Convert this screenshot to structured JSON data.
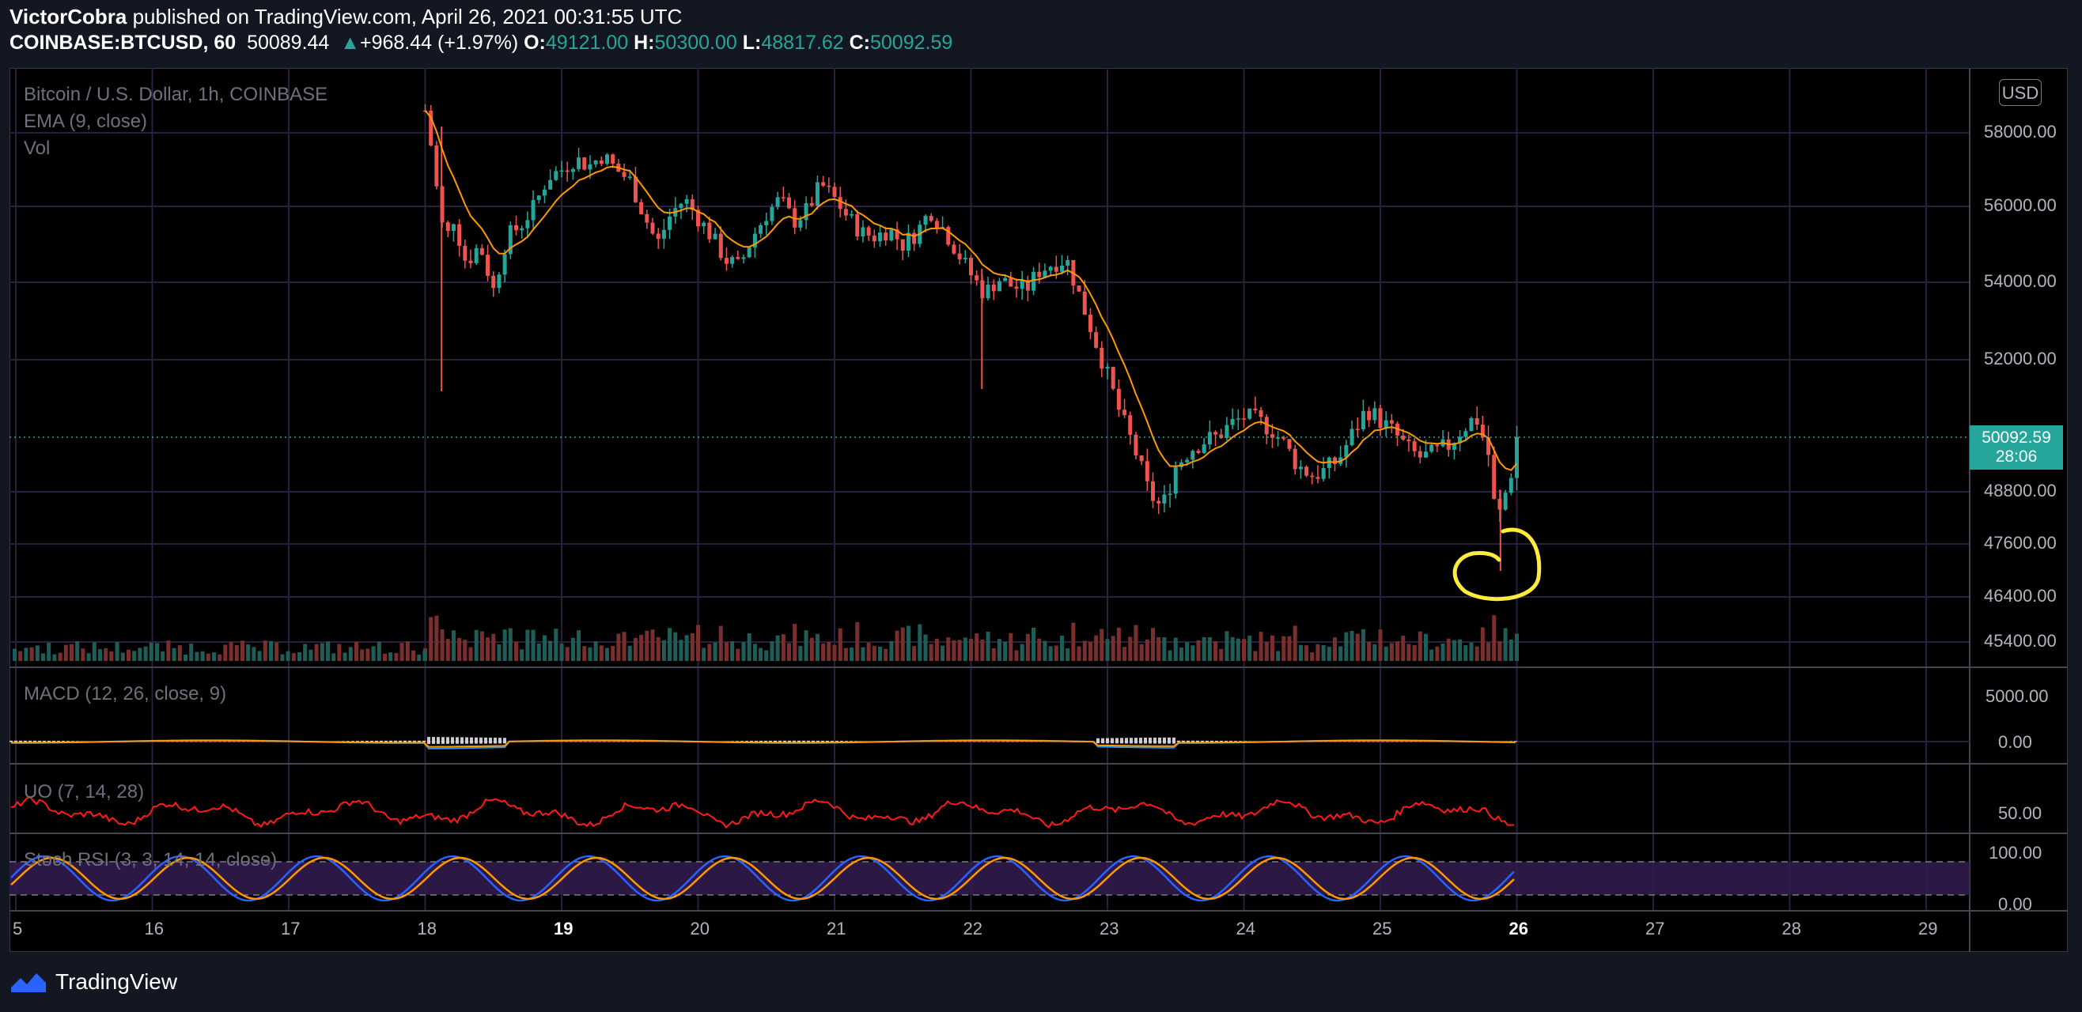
{
  "header": {
    "author": "VictorCobra",
    "published_text": " published on TradingView.com, April 26, 2021 00:31:55 UTC",
    "symbol": "COINBASE:BTCUSD, 60",
    "last": "50089.44",
    "change": "+968.44 (+1.97%)",
    "o_label": "O:",
    "o_val": "49121.00",
    "h_label": "H:",
    "h_val": "50300.00",
    "l_label": "L:",
    "l_val": "48817.62",
    "c_label": "C:",
    "c_val": "50092.59"
  },
  "legend": {
    "title": "Bitcoin / U.S. Dollar, 1h, COINBASE",
    "ema": "EMA (9, close)",
    "vol": "Vol",
    "macd": "MACD (12, 26, close, 9)",
    "uo": "UO (7, 14, 28)",
    "stoch": "Stoch RSI (3, 3, 14, 14, close)"
  },
  "currency_button": "USD",
  "price_axis": [
    "58000.00",
    "56000.00",
    "54000.00",
    "52000.00",
    "48800.00",
    "47600.00",
    "46400.00",
    "45400.00"
  ],
  "current_price": {
    "price": "50092.59",
    "countdown": "28:06"
  },
  "macd_axis": [
    "5000.00",
    "0.00"
  ],
  "uo_axis": [
    "50.00"
  ],
  "stoch_axis": [
    "100.00",
    "0.00"
  ],
  "time_axis": [
    "5",
    "16",
    "17",
    "18",
    "19",
    "20",
    "21",
    "22",
    "23",
    "24",
    "25",
    "26",
    "27",
    "28",
    "29"
  ],
  "colors": {
    "up": "#26a69a",
    "down": "#ef5350",
    "ema": "#ff9800",
    "annotation": "#ffeb3b",
    "uo": "#ff1a1a",
    "stoch_k": "#2962ff",
    "stoch_d": "#ff9800",
    "stoch_band": "#311b4b"
  },
  "footer": {
    "brand": "TradingView"
  },
  "chart_data": {
    "type": "candlestick",
    "title": "Bitcoin / U.S. Dollar, 1h, COINBASE",
    "ylim": [
      45000,
      59000
    ],
    "x_ticks": [
      "5",
      "16",
      "17",
      "18",
      "19",
      "20",
      "21",
      "22",
      "23",
      "24",
      "25",
      "26",
      "27",
      "28",
      "29"
    ],
    "close_path": [
      [
        18.0,
        58600
      ],
      [
        18.05,
        57500
      ],
      [
        18.1,
        56000
      ],
      [
        18.15,
        55000
      ],
      [
        18.2,
        55800
      ],
      [
        18.3,
        54500
      ],
      [
        18.4,
        55000
      ],
      [
        18.5,
        53800
      ],
      [
        18.6,
        55200
      ],
      [
        18.7,
        55500
      ],
      [
        18.8,
        56000
      ],
      [
        18.9,
        56800
      ],
      [
        19.0,
        57000
      ],
      [
        19.1,
        57300
      ],
      [
        19.2,
        57100
      ],
      [
        19.3,
        57400
      ],
      [
        19.4,
        57000
      ],
      [
        19.5,
        56700
      ],
      [
        19.6,
        55800
      ],
      [
        19.7,
        55000
      ],
      [
        19.8,
        55800
      ],
      [
        19.9,
        56200
      ],
      [
        20.0,
        55700
      ],
      [
        20.1,
        55200
      ],
      [
        20.2,
        54600
      ],
      [
        20.3,
        54400
      ],
      [
        20.4,
        55200
      ],
      [
        20.5,
        55800
      ],
      [
        20.6,
        56200
      ],
      [
        20.7,
        55600
      ],
      [
        20.8,
        55900
      ],
      [
        20.9,
        56600
      ],
      [
        21.0,
        56200
      ],
      [
        21.1,
        55700
      ],
      [
        21.2,
        55300
      ],
      [
        21.3,
        55200
      ],
      [
        21.4,
        55400
      ],
      [
        21.5,
        55000
      ],
      [
        21.6,
        55300
      ],
      [
        21.7,
        55900
      ],
      [
        21.8,
        55400
      ],
      [
        21.9,
        54800
      ],
      [
        22.0,
        54200
      ],
      [
        22.1,
        53700
      ],
      [
        22.2,
        54100
      ],
      [
        22.3,
        53900
      ],
      [
        22.4,
        53800
      ],
      [
        22.5,
        54300
      ],
      [
        22.6,
        54500
      ],
      [
        22.7,
        54600
      ],
      [
        22.8,
        53600
      ],
      [
        22.9,
        52600
      ],
      [
        23.0,
        51600
      ],
      [
        23.1,
        50600
      ],
      [
        23.2,
        49800
      ],
      [
        23.3,
        48800
      ],
      [
        23.4,
        48400
      ],
      [
        23.5,
        49400
      ],
      [
        23.6,
        49800
      ],
      [
        23.7,
        50000
      ],
      [
        23.8,
        50100
      ],
      [
        23.9,
        50400
      ],
      [
        24.0,
        50600
      ],
      [
        24.1,
        50500
      ],
      [
        24.2,
        50300
      ],
      [
        24.3,
        49900
      ],
      [
        24.4,
        49400
      ],
      [
        24.5,
        49200
      ],
      [
        24.6,
        49300
      ],
      [
        24.7,
        49600
      ],
      [
        24.8,
        50200
      ],
      [
        24.9,
        50800
      ],
      [
        25.0,
        50500
      ],
      [
        25.1,
        50200
      ],
      [
        25.2,
        49800
      ],
      [
        25.3,
        49600
      ],
      [
        25.4,
        49700
      ],
      [
        25.5,
        49900
      ],
      [
        25.6,
        50300
      ],
      [
        25.7,
        50600
      ],
      [
        25.8,
        49600
      ],
      [
        25.85,
        48000
      ],
      [
        25.9,
        48600
      ],
      [
        25.95,
        49100
      ],
      [
        26.0,
        50092
      ]
    ]
  }
}
